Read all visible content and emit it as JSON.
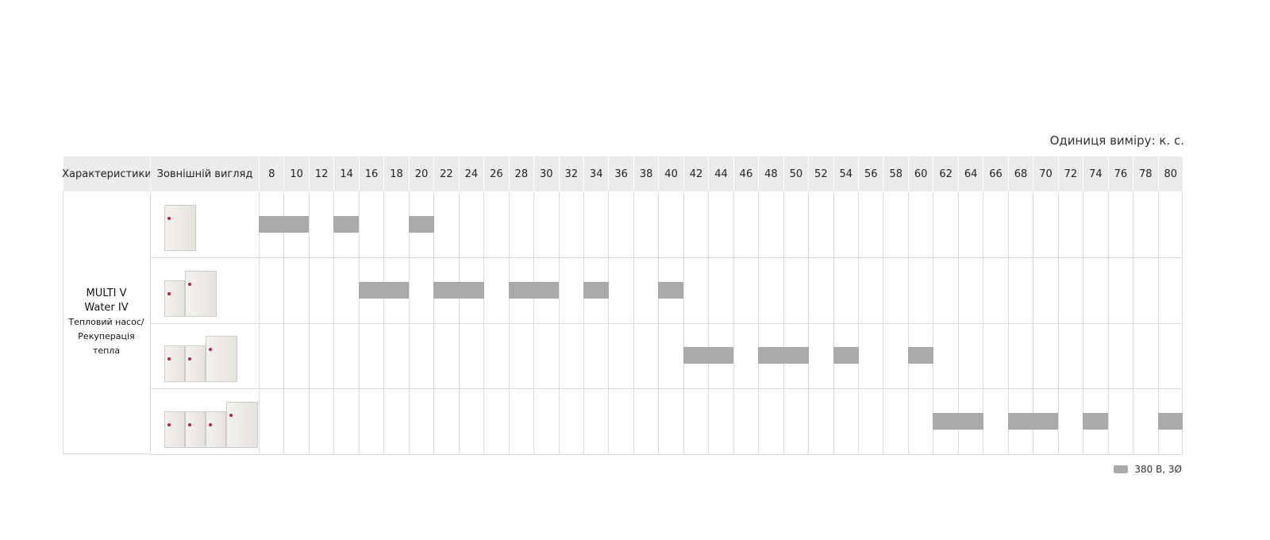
{
  "unit_note": "Одиниця виміру: к. с.",
  "legend": {
    "label": "380 В, 3Ø",
    "color": "#aaaaaa"
  },
  "chart_data": {
    "type": "table",
    "headers": {
      "characteristics": "Характеристики",
      "appearance": "Зовнішній вигляд"
    },
    "categories": [
      8,
      10,
      12,
      14,
      16,
      18,
      20,
      22,
      24,
      26,
      28,
      30,
      32,
      34,
      36,
      38,
      40,
      42,
      44,
      46,
      48,
      50,
      52,
      54,
      56,
      58,
      60,
      62,
      64,
      66,
      68,
      70,
      72,
      74,
      76,
      78,
      80
    ],
    "model": {
      "name_line1": "MULTI V",
      "name_line2": "Water IV",
      "sub_line1": "Тепловий насос/",
      "sub_line2": "Рекуперація",
      "sub_line3": "тепла"
    },
    "rows": [
      {
        "modules": 1,
        "available": [
          8,
          10,
          14,
          20
        ]
      },
      {
        "modules": 2,
        "available": [
          16,
          18,
          22,
          24,
          28,
          30,
          34,
          40
        ]
      },
      {
        "modules": 3,
        "available": [
          42,
          44,
          48,
          50,
          54,
          60
        ]
      },
      {
        "modules": 4,
        "available": [
          62,
          64,
          68,
          70,
          74,
          80
        ]
      }
    ]
  }
}
